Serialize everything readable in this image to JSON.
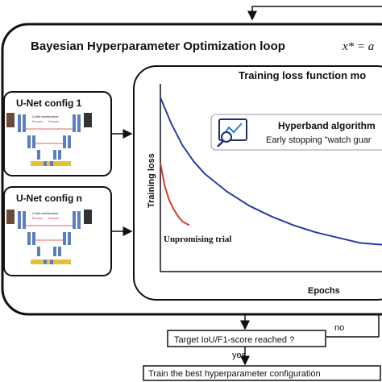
{
  "loop": {
    "title": "Bayesian Hyperparameter Optimization loop",
    "formula": "x* = a"
  },
  "unet_configs": [
    {
      "label": "U-Net config 1",
      "caption": "U-Net architecture",
      "legend_a": "Encoder",
      "legend_b": "Decoder"
    },
    {
      "label": "U-Net config n",
      "caption": "U-Net architecture",
      "legend_a": "Encoder",
      "legend_b": "Decoder"
    }
  ],
  "monitor": {
    "title": "Training loss function mo",
    "ylabel": "Training loss",
    "xlabel": "Epochs",
    "trial_label": "Unpromising trial",
    "hyperband_title": "Hyperband algorithm",
    "hyperband_sub": "Early stopping \"watch guar",
    "colors": {
      "main_curve": "#2b3aa8",
      "trial_curve": "#d63a2f"
    }
  },
  "chart_data": {
    "type": "line",
    "xlabel": "Epochs",
    "ylabel": "Training loss",
    "series": [
      {
        "x": [
          0,
          0.05,
          0.1,
          0.15,
          0.2,
          0.3,
          0.4,
          0.5,
          0.6,
          0.7,
          0.8,
          0.9,
          1.0
        ],
        "y": [
          0.95,
          0.8,
          0.68,
          0.59,
          0.52,
          0.42,
          0.34,
          0.28,
          0.23,
          0.19,
          0.16,
          0.13,
          0.12
        ]
      },
      {
        "x": [
          0,
          0.02,
          0.04,
          0.06,
          0.08,
          0.1,
          0.13
        ],
        "y": [
          0.58,
          0.45,
          0.37,
          0.32,
          0.28,
          0.25,
          0.23
        ]
      }
    ]
  },
  "decision": {
    "question": "Target IoU/F1-score reached ?",
    "no_label": "no",
    "yes_label": "yes",
    "final": "Train the best hyperparameter configuration"
  }
}
